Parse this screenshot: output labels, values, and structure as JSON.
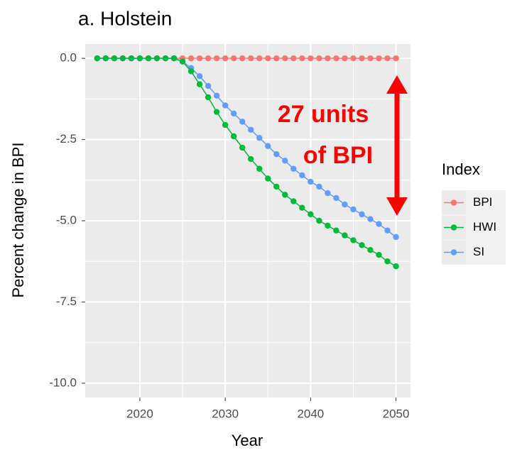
{
  "chart_data": {
    "type": "line",
    "title": "a. Holstein",
    "x_label": "Year",
    "y_label": "Percent change in BPI",
    "legend_title": "Index",
    "annotation": [
      "27 units",
      "of BPI"
    ],
    "x": [
      2015,
      2016,
      2017,
      2018,
      2019,
      2020,
      2021,
      2022,
      2023,
      2024,
      2025,
      2026,
      2027,
      2028,
      2029,
      2030,
      2031,
      2032,
      2033,
      2034,
      2035,
      2036,
      2037,
      2038,
      2039,
      2040,
      2041,
      2042,
      2043,
      2044,
      2045,
      2046,
      2047,
      2048,
      2049,
      2050
    ],
    "series": [
      {
        "name": "BPI",
        "color": "#F8766D",
        "values": [
          0,
          0,
          0,
          0,
          0,
          0,
          0,
          0,
          0,
          0,
          0,
          0,
          0,
          0,
          0,
          0,
          0,
          0,
          0,
          0,
          0,
          0,
          0,
          0,
          0,
          0,
          0,
          0,
          0,
          0,
          0,
          0,
          0,
          0,
          0,
          0
        ]
      },
      {
        "name": "HWI",
        "color": "#00BA38",
        "values": [
          0,
          0,
          0,
          0,
          0,
          0,
          0,
          0,
          0,
          0,
          -0.1,
          -0.4,
          -0.8,
          -1.2,
          -1.65,
          -2.05,
          -2.4,
          -2.75,
          -3.1,
          -3.4,
          -3.7,
          -3.95,
          -4.2,
          -4.4,
          -4.6,
          -4.8,
          -5.0,
          -5.15,
          -5.3,
          -5.45,
          -5.6,
          -5.75,
          -5.9,
          -6.05,
          -6.25,
          -6.4
        ]
      },
      {
        "name": "SI",
        "color": "#619CFF",
        "values": [
          0,
          0,
          0,
          0,
          0,
          0,
          0,
          0,
          0,
          0,
          -0.1,
          -0.3,
          -0.55,
          -0.85,
          -1.15,
          -1.45,
          -1.7,
          -1.95,
          -2.2,
          -2.45,
          -2.7,
          -2.95,
          -3.15,
          -3.4,
          -3.6,
          -3.8,
          -3.95,
          -4.15,
          -4.3,
          -4.5,
          -4.65,
          -4.8,
          -4.95,
          -5.1,
          -5.3,
          -5.5
        ]
      }
    ],
    "draw_order": [
      0,
      2,
      1
    ],
    "xlim": [
      2013.6,
      2051.7
    ],
    "xticks": [
      2020,
      2030,
      2040,
      2050
    ],
    "ylim": [
      -10.44,
      0.44
    ],
    "yticks": [
      {
        "value": 0,
        "label": "0.0"
      },
      -2.5,
      {
        "value": -5,
        "label": "-5.0"
      },
      -7.5,
      {
        "value": -10,
        "label": "-10.0"
      }
    ],
    "grid": true,
    "legend_position": "right"
  }
}
